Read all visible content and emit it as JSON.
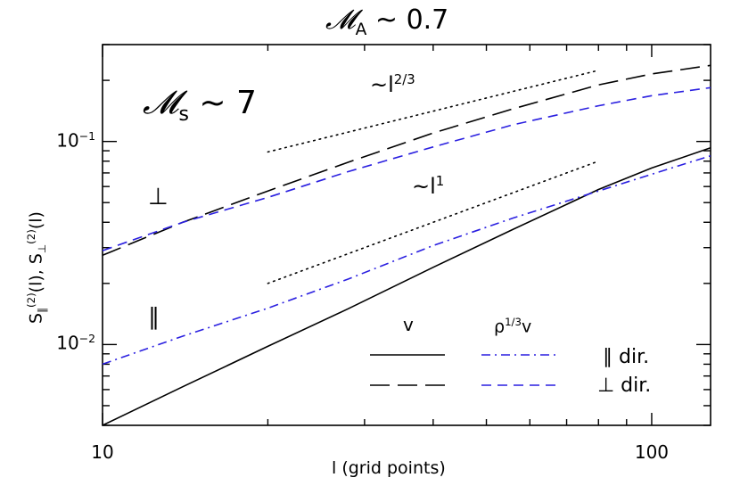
{
  "chart_data": {
    "type": "line",
    "title": {
      "symbol": "𝓜",
      "subscript": "A",
      "rest": "~ 0.7"
    },
    "xlabel": "l (grid points)",
    "ylabel": {
      "s1": "S",
      "sub1": "∥",
      "sup1": "(2)",
      "arg1": "(l),",
      "s2": "S",
      "sub2": "⊥",
      "sup2": "(2)",
      "arg2": "(l)"
    },
    "xscale": "log",
    "yscale": "log",
    "xlim": [
      10,
      128
    ],
    "ylim": [
      0.004,
      0.3
    ],
    "x_ticks": [
      {
        "value": 10,
        "label": "10"
      },
      {
        "value": 100,
        "label": "100"
      }
    ],
    "y_ticks": [
      {
        "value": 0.01,
        "base": "10",
        "exp": "−2"
      },
      {
        "value": 0.1,
        "base": "10",
        "exp": "−1"
      }
    ],
    "grid": false,
    "x": [
      10,
      14,
      20,
      28,
      40,
      56,
      80,
      100,
      128
    ],
    "series": [
      {
        "key": "v_perp",
        "color": "#000000",
        "dash": "long-dash",
        "values": [
          0.0275,
          0.04,
          0.057,
          0.079,
          0.11,
          0.145,
          0.19,
          0.215,
          0.237
        ]
      },
      {
        "key": "rho_v_perp",
        "color": "#2a1fe0",
        "dash": "short-dash",
        "values": [
          0.029,
          0.04,
          0.053,
          0.071,
          0.094,
          0.121,
          0.15,
          0.168,
          0.184
        ]
      },
      {
        "key": "v_par",
        "color": "#000000",
        "dash": "solid",
        "values": [
          0.004,
          0.0062,
          0.0098,
          0.015,
          0.024,
          0.037,
          0.058,
          0.074,
          0.093
        ]
      },
      {
        "key": "rho_v_par",
        "color": "#2a1fe0",
        "dash": "dash-dot",
        "values": [
          0.008,
          0.011,
          0.0151,
          0.021,
          0.0307,
          0.042,
          0.057,
          0.069,
          0.085
        ]
      }
    ],
    "reference_lines": [
      {
        "key": "slope_2_3",
        "x": [
          20,
          80
        ],
        "y": [
          0.0888,
          0.224
        ],
        "style": "dotted",
        "label_base": "~l",
        "label_exp": "2/3"
      },
      {
        "key": "slope_1",
        "x": [
          20,
          80
        ],
        "y": [
          0.02,
          0.08
        ],
        "style": "dotted",
        "label_base": "~l",
        "label_exp": "1"
      }
    ],
    "annotations": {
      "mach_s": {
        "symbol": "𝓜",
        "subscript": "s",
        "rest": "~ 7"
      },
      "perp_marker": "⊥",
      "par_marker": "∥"
    },
    "legend": {
      "placement": "bottom-right",
      "col1": "v",
      "col2_base": "ρ",
      "col2_exp": "1/3",
      "col2_tail": "v",
      "row1": "∥ dir.",
      "row2": "⊥ dir."
    }
  }
}
